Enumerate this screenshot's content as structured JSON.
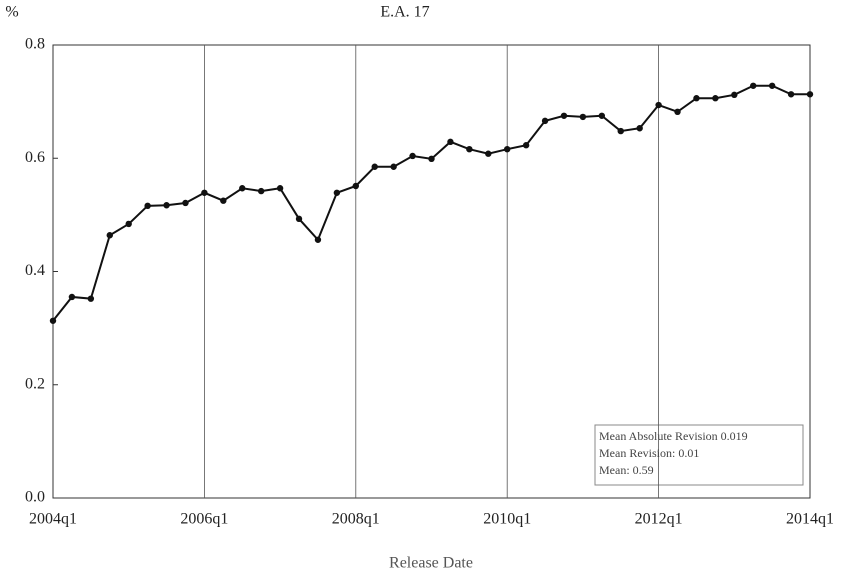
{
  "chart_data": {
    "type": "line",
    "title": "E.A. 17",
    "y_unit": "%",
    "x_label": "Release Date",
    "categories": [
      "2004q1",
      null,
      null,
      null,
      null,
      null,
      null,
      null,
      "2006q1",
      null,
      null,
      null,
      null,
      null,
      null,
      null,
      "2008q1",
      null,
      null,
      null,
      null,
      null,
      null,
      null,
      "2010q1",
      null,
      null,
      null,
      null,
      null,
      null,
      null,
      "2012q1",
      null,
      null,
      null,
      null,
      null,
      null,
      null,
      "2014q1"
    ],
    "series": [
      {
        "name": "E.A. 17",
        "color": "#111111",
        "values": [
          0.313,
          0.355,
          0.352,
          0.464,
          0.484,
          0.516,
          0.517,
          0.521,
          0.539,
          0.525,
          0.547,
          0.542,
          0.547,
          0.493,
          0.456,
          0.539,
          0.551,
          0.585,
          0.585,
          0.604,
          0.599,
          0.629,
          0.616,
          0.608,
          0.616,
          0.623,
          0.666,
          0.675,
          0.673,
          0.675,
          0.648,
          0.653,
          0.694,
          0.682,
          0.706,
          0.706,
          0.712,
          0.728,
          0.728,
          0.713,
          0.713
        ]
      }
    ],
    "ylim": [
      0,
      0.8
    ],
    "yticks": [
      {
        "value": 0,
        "label": "0.0"
      },
      0.2,
      0.4,
      0.6,
      0.8
    ],
    "grid": "x",
    "annotations": [
      "Mean Absolute Revision 0.019",
      "Mean Revision: 0.01",
      "Mean: 0.59"
    ]
  }
}
